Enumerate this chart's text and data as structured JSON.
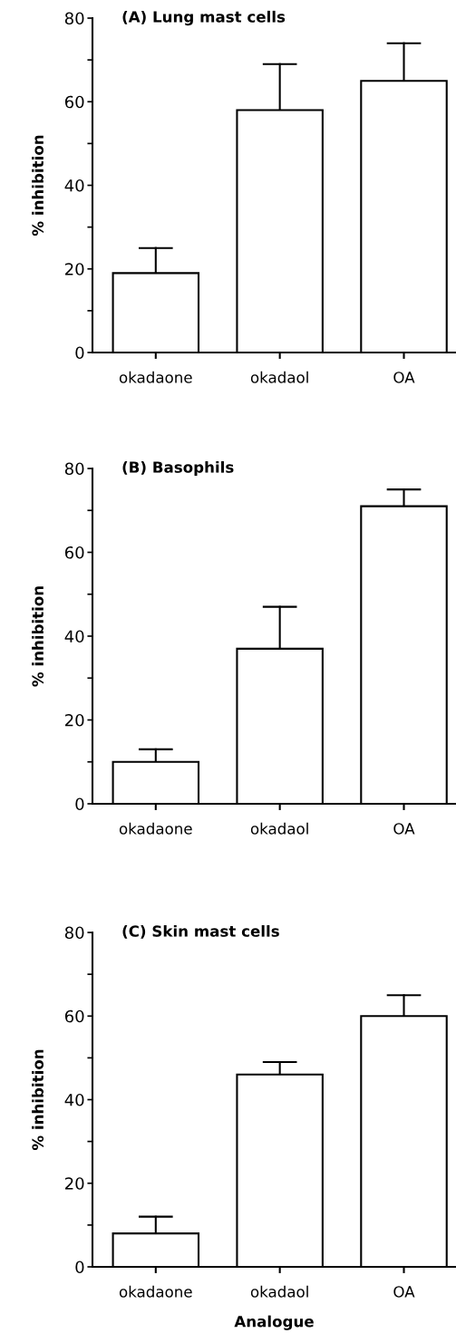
{
  "chart_data": [
    {
      "type": "bar",
      "title": "(A) Lung mast cells",
      "ylabel": "% inhibition",
      "categories": [
        "okadaone",
        "okadaol",
        "OA"
      ],
      "values": [
        19,
        58,
        65
      ],
      "errors": [
        [
          19,
          25
        ],
        [
          58,
          69
        ],
        [
          65,
          74
        ]
      ],
      "color": "#ffffff",
      "ylim": [
        0,
        80
      ],
      "yticks": [
        0,
        {
          "value": 10,
          "label": null
        },
        20,
        {
          "value": 30,
          "label": null
        },
        40,
        {
          "value": 50,
          "label": null
        },
        60,
        {
          "value": 70,
          "label": null
        },
        80
      ],
      "grid": false,
      "legend": false
    },
    {
      "type": "bar",
      "title": "(B) Basophils",
      "ylabel": "% inhibition",
      "categories": [
        "okadaone",
        "okadaol",
        "OA"
      ],
      "values": [
        10,
        37,
        71
      ],
      "errors": [
        [
          10,
          13
        ],
        [
          37,
          47
        ],
        [
          71,
          75
        ]
      ],
      "color": "#ffffff",
      "ylim": [
        0,
        80
      ],
      "yticks": [
        0,
        {
          "value": 10,
          "label": null
        },
        20,
        {
          "value": 30,
          "label": null
        },
        40,
        {
          "value": 50,
          "label": null
        },
        60,
        {
          "value": 70,
          "label": null
        },
        80
      ],
      "grid": false,
      "legend": false
    },
    {
      "type": "bar",
      "title": "(C) Skin mast cells",
      "ylabel": "% inhibition",
      "xlabel": "Analogue",
      "categories": [
        "okadaone",
        "okadaol",
        "OA"
      ],
      "values": [
        8,
        46,
        60
      ],
      "errors": [
        [
          8,
          12
        ],
        [
          46,
          49
        ],
        [
          60,
          65
        ]
      ],
      "color": "#ffffff",
      "ylim": [
        0,
        80
      ],
      "yticks": [
        0,
        {
          "value": 10,
          "label": null
        },
        20,
        {
          "value": 30,
          "label": null
        },
        40,
        {
          "value": 50,
          "label": null
        },
        60,
        {
          "value": 70,
          "label": null
        },
        80
      ],
      "grid": false,
      "legend": false
    }
  ]
}
